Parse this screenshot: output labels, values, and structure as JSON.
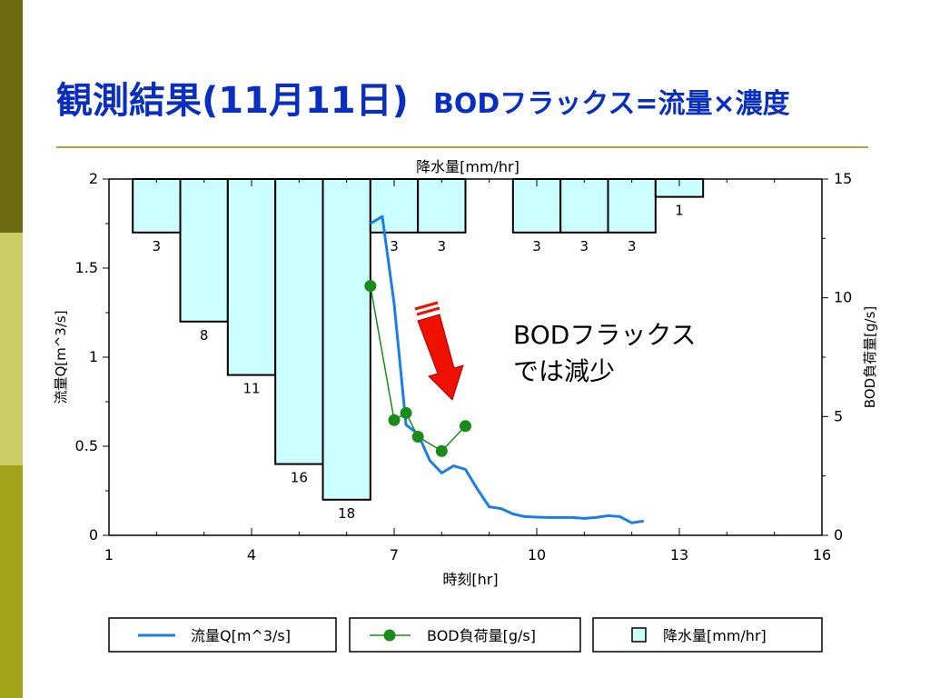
{
  "slide": {
    "title": "観測結果(11月11日)",
    "subtitle": "BODフラックス=流量×濃度",
    "side_colors": [
      "#6b6b12",
      "#cccc66",
      "#a3a31a"
    ],
    "title_color": "#0a2fbf",
    "rule_color": "#b5a43a"
  },
  "chart_data": {
    "type": "bar+line",
    "title": "降水量[mm/hr]",
    "xlabel": "時刻[hr]",
    "ylabel_left": "流量Q[m^3/s]",
    "ylabel_right": "BOD負荷量[g/s]",
    "xlim": [
      1,
      16
    ],
    "ylim_left": [
      0,
      2
    ],
    "ylim_right": [
      0,
      15
    ],
    "x_ticks": [
      1,
      4,
      7,
      10,
      13,
      16
    ],
    "y_left_ticks": [
      {
        "value": 0,
        "label": "0"
      },
      {
        "value": 0.5,
        "label": "0.5"
      },
      {
        "value": 1,
        "label": "1"
      },
      {
        "value": 1.5,
        "label": "1.5"
      },
      {
        "value": 2,
        "label": "2"
      }
    ],
    "y_right_ticks": [
      {
        "value": 0,
        "label": "0"
      },
      {
        "value": 5,
        "label": "5"
      },
      {
        "value": 10,
        "label": "10"
      },
      {
        "value": 15,
        "label": "15"
      }
    ],
    "rainfall": {
      "name": "降水量[mm/hr]",
      "scale_max": 20,
      "color": "#ccffff",
      "bars": [
        {
          "x0": 1.5,
          "x1": 2.5,
          "value": 3,
          "label": "3"
        },
        {
          "x0": 2.5,
          "x1": 3.5,
          "value": 8,
          "label": "8"
        },
        {
          "x0": 3.5,
          "x1": 4.5,
          "value": 11,
          "label": "11"
        },
        {
          "x0": 4.5,
          "x1": 5.5,
          "value": 16,
          "label": "16"
        },
        {
          "x0": 5.5,
          "x1": 6.5,
          "value": 18,
          "label": "18"
        },
        {
          "x0": 6.5,
          "x1": 7.5,
          "value": 3,
          "label": "3"
        },
        {
          "x0": 7.5,
          "x1": 8.5,
          "value": 3,
          "label": "3"
        },
        {
          "x0": 9.5,
          "x1": 10.5,
          "value": 3,
          "label": "3"
        },
        {
          "x0": 10.5,
          "x1": 11.5,
          "value": 3,
          "label": "3"
        },
        {
          "x0": 11.5,
          "x1": 12.5,
          "value": 3,
          "label": "3"
        },
        {
          "x0": 12.5,
          "x1": 13.5,
          "value": 1,
          "label": "1"
        }
      ]
    },
    "series": [
      {
        "name": "流量Q[m^3/s]",
        "axis": "left",
        "color": "#1a7ee6",
        "x": [
          6.5,
          6.75,
          7.0,
          7.25,
          7.5,
          7.75,
          8.0,
          8.25,
          8.5,
          8.75,
          9.0,
          9.25,
          9.5,
          9.75,
          10.0,
          10.25,
          10.5,
          10.75,
          11.0,
          11.25,
          11.5,
          11.75,
          12.0,
          12.25
        ],
        "values": [
          1.75,
          1.79,
          1.3,
          0.62,
          0.57,
          0.42,
          0.35,
          0.39,
          0.37,
          0.26,
          0.16,
          0.15,
          0.12,
          0.105,
          0.102,
          0.1,
          0.1,
          0.1,
          0.095,
          0.1,
          0.11,
          0.105,
          0.07,
          0.08
        ]
      },
      {
        "name": "BOD負荷量[g/s]",
        "axis": "right",
        "color": "#1a8a1a",
        "x": [
          6.5,
          7.0,
          7.25,
          7.5,
          8.0,
          8.5
        ],
        "values": [
          10.5,
          4.85,
          5.15,
          4.15,
          3.55,
          4.6
        ]
      }
    ],
    "annotation": {
      "lines": [
        "BODフラックス",
        "では減少"
      ]
    },
    "arrow_color": "#ee1100",
    "legend": {
      "items": [
        "流量Q[m^3/s]",
        "BOD負荷量[g/s]",
        "降水量[mm/hr]"
      ],
      "placement": "bottom"
    }
  }
}
